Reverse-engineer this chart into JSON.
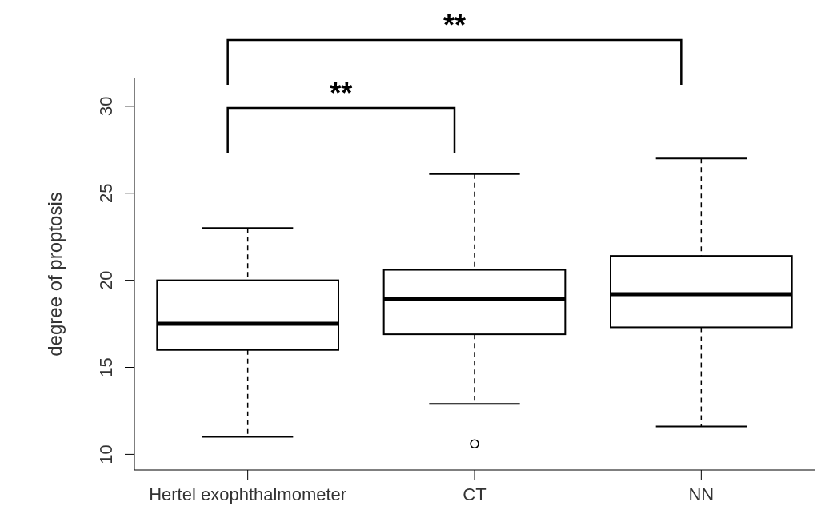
{
  "chart_data": {
    "type": "box",
    "ylabel": "degree of proptosis",
    "categories": [
      "Hertel exophthalmometer",
      "CT",
      "NN"
    ],
    "boxes": [
      {
        "low": 11.0,
        "q1": 16.0,
        "median": 17.5,
        "q3": 20.0,
        "high": 23.0
      },
      {
        "low": 12.9,
        "q1": 16.9,
        "median": 18.9,
        "q3": 20.6,
        "high": 26.1,
        "outliers": [
          10.6
        ]
      },
      {
        "low": 11.6,
        "q1": 17.3,
        "median": 19.2,
        "q3": 21.4,
        "high": 27.0
      }
    ],
    "ylim": [
      9.1,
      31.6
    ],
    "yticks": [
      10,
      15,
      20,
      25,
      30
    ],
    "annotations": [
      "**",
      "**"
    ]
  }
}
